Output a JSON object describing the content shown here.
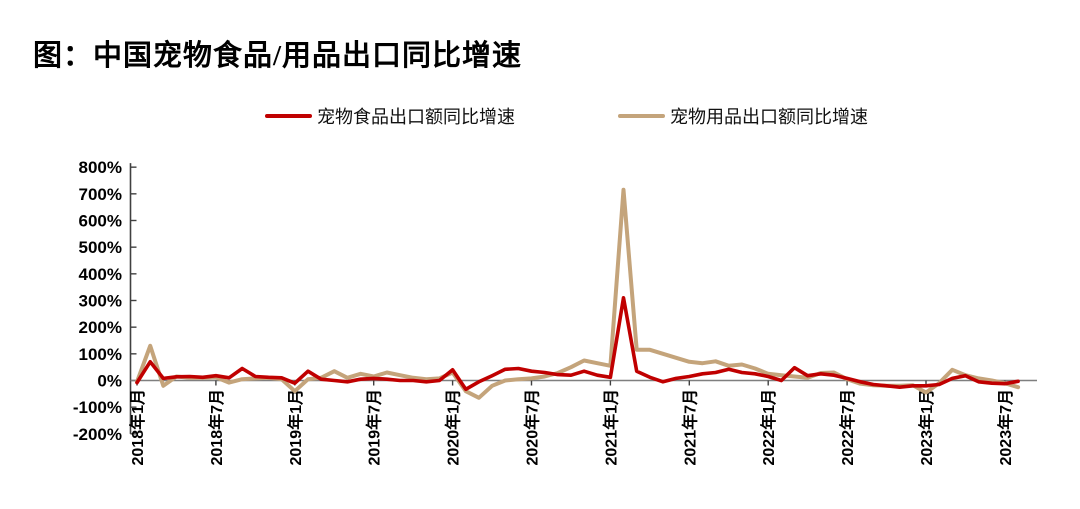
{
  "page": {
    "title": "图：中国宠物食品/用品出口同比增速"
  },
  "legend": {
    "items": [
      {
        "label": "宠物食品出口额同比增速",
        "color": "#C00000"
      },
      {
        "label": "宠物用品出口额同比增速",
        "color": "#C4A47B"
      }
    ]
  },
  "chart_data": {
    "type": "line",
    "title": "中国宠物食品/用品出口同比增速",
    "xlabel": "",
    "ylabel": "同比增速(%)",
    "ylim": [
      -200,
      800
    ],
    "grid": false,
    "legend_position": "top",
    "y_tick_labels": [
      "800%",
      "700%",
      "600%",
      "500%",
      "400%",
      "300%",
      "200%",
      "100%",
      "0%",
      "-100%",
      "-200%"
    ],
    "y_tick_values": [
      800,
      700,
      600,
      500,
      400,
      300,
      200,
      100,
      0,
      -100,
      -200
    ],
    "x_tick_labels": [
      "2018年1月",
      "2018年7月",
      "2019年1月",
      "2019年7月",
      "2020年1月",
      "2020年7月",
      "2021年1月",
      "2021年7月",
      "2022年1月",
      "2022年7月",
      "2023年1月",
      "2023年7月"
    ],
    "x_tick_every_months": 6,
    "months": [
      "2018年1月",
      "2018年2月",
      "2018年3月",
      "2018年4月",
      "2018年5月",
      "2018年6月",
      "2018年7月",
      "2018年8月",
      "2018年9月",
      "2018年10月",
      "2018年11月",
      "2018年12月",
      "2019年1月",
      "2019年2月",
      "2019年3月",
      "2019年4月",
      "2019年5月",
      "2019年6月",
      "2019年7月",
      "2019年8月",
      "2019年9月",
      "2019年10月",
      "2019年11月",
      "2019年12月",
      "2020年1月",
      "2020年2月",
      "2020年3月",
      "2020年4月",
      "2020年5月",
      "2020年6月",
      "2020年7月",
      "2020年8月",
      "2020年9月",
      "2020年10月",
      "2020年11月",
      "2020年12月",
      "2021年1月",
      "2021年2月",
      "2021年3月",
      "2021年4月",
      "2021年5月",
      "2021年6月",
      "2021年7月",
      "2021年8月",
      "2021年9月",
      "2021年10月",
      "2021年11月",
      "2021年12月",
      "2022年1月",
      "2022年2月",
      "2022年3月",
      "2022年4月",
      "2022年5月",
      "2022年6月",
      "2022年7月",
      "2022年8月",
      "2022年9月",
      "2022年10月",
      "2022年11月",
      "2022年12月",
      "2023年1月",
      "2023年2月",
      "2023年3月",
      "2023年4月",
      "2023年5月",
      "2023年6月",
      "2023年7月",
      "2023年8月"
    ],
    "series": [
      {
        "name": "宠物食品出口额同比增速",
        "color": "#C00000",
        "stroke_width": 3.6,
        "values": [
          -8,
          70,
          8,
          14,
          15,
          12,
          18,
          10,
          45,
          15,
          12,
          10,
          -10,
          35,
          5,
          0,
          -5,
          5,
          8,
          5,
          0,
          0,
          -5,
          0,
          40,
          -33,
          -5,
          18,
          42,
          45,
          35,
          30,
          22,
          20,
          35,
          20,
          12,
          310,
          35,
          12,
          -5,
          8,
          15,
          25,
          30,
          42,
          30,
          25,
          15,
          0,
          48,
          18,
          25,
          20,
          8,
          -5,
          -15,
          -20,
          -25,
          -20,
          -20,
          -15,
          8,
          18,
          -5,
          -10,
          -12,
          -3
        ]
      },
      {
        "name": "宠物用品出口额同比增速",
        "color": "#C4A47B",
        "stroke_width": 4,
        "values": [
          -5,
          130,
          -20,
          15,
          10,
          10,
          12,
          -8,
          5,
          8,
          10,
          5,
          -40,
          5,
          10,
          35,
          10,
          25,
          15,
          30,
          20,
          10,
          5,
          8,
          30,
          -40,
          -65,
          -20,
          0,
          5,
          8,
          15,
          28,
          50,
          75,
          65,
          55,
          715,
          115,
          115,
          100,
          85,
          70,
          65,
          72,
          55,
          60,
          45,
          25,
          20,
          15,
          10,
          28,
          30,
          5,
          -12,
          -18,
          -20,
          -20,
          -18,
          -45,
          -10,
          40,
          20,
          8,
          0,
          -10,
          -25
        ]
      }
    ],
    "axis_color": "#404040",
    "zero_line_color": "#7f7f7f"
  }
}
